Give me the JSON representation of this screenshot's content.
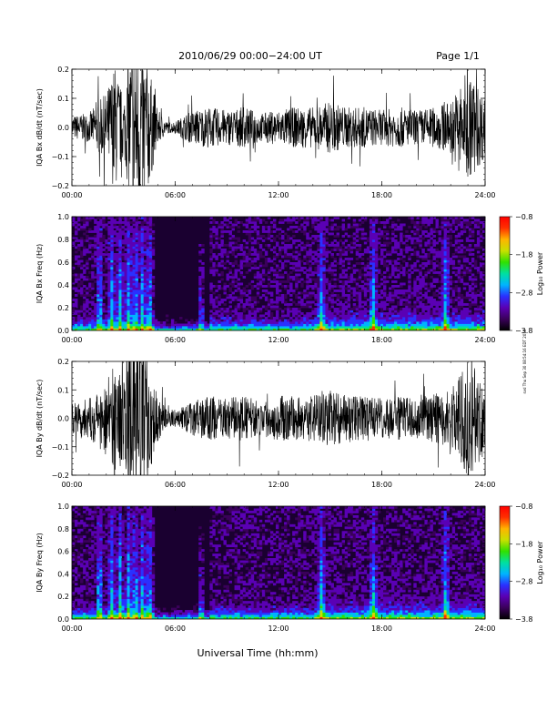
{
  "header": {
    "title": "2010/06/29  00:00−24:00 UT",
    "page": "Page 1/1"
  },
  "xlabel": "Universal Time (hh:mm)",
  "side_stamp": "svd Thu Sep 30 08:54:16 EDT 2010",
  "colors": {
    "trace": "#000000",
    "colormap": [
      "#000000",
      "#3a005a",
      "#5a00b4",
      "#2a30ff",
      "#00b4ff",
      "#00e0a0",
      "#30e000",
      "#c8e000",
      "#ffb400",
      "#ff3000",
      "#ff0000"
    ]
  },
  "chart_data": [
    {
      "type": "line",
      "ylabel": "IQA Bx dB/dt (nT/sec)",
      "xlim": [
        0,
        24
      ],
      "ylim": [
        -0.2,
        0.2
      ],
      "xticks": [
        "00:00",
        "06:00",
        "12:00",
        "18:00",
        "24:00"
      ],
      "yticks": [
        "0.2",
        "0.1",
        "0.0",
        "−0.1",
        "−0.2"
      ],
      "ytick_values": [
        0.2,
        0.1,
        0.0,
        -0.1,
        -0.2
      ],
      "activity_envelope": {
        "x": [
          0,
          1,
          2,
          2.5,
          3,
          3.5,
          4,
          4.5,
          5,
          5.5,
          6,
          7,
          8,
          9,
          10,
          11,
          12,
          13,
          14,
          15,
          16,
          17,
          18,
          19,
          20,
          21,
          22,
          23,
          24
        ],
        "amplitude": [
          0.04,
          0.05,
          0.12,
          0.22,
          0.1,
          0.3,
          0.3,
          0.2,
          0.06,
          0.02,
          0.02,
          0.06,
          0.07,
          0.06,
          0.07,
          0.05,
          0.06,
          0.07,
          0.07,
          0.09,
          0.07,
          0.07,
          0.06,
          0.07,
          0.06,
          0.07,
          0.09,
          0.2,
          0.1
        ]
      }
    },
    {
      "type": "heatmap",
      "ylabel": "IQA Bx Freq (Hz)",
      "xlim": [
        0,
        24
      ],
      "ylim": [
        0,
        1.0
      ],
      "xticks": [
        "00:00",
        "06:00",
        "12:00",
        "18:00",
        "24:00"
      ],
      "yticks": [
        "1.0",
        "0.8",
        "0.6",
        "0.4",
        "0.2",
        "0.0"
      ],
      "ytick_values": [
        1.0,
        0.8,
        0.6,
        0.4,
        0.2,
        0.0
      ],
      "colorbar": {
        "label": "Log₁₀ Power",
        "range": [
          -3.8,
          -0.8
        ],
        "ticks": [
          "−0.8",
          "−1.8",
          "−2.8",
          "−3.8"
        ],
        "tick_values": [
          -0.8,
          -1.8,
          -2.8,
          -3.8
        ]
      },
      "activity_bands": [
        1.6,
        2.3,
        2.8,
        3.3,
        3.7,
        4.1,
        4.5,
        7.5,
        14.5,
        17.5,
        21.7
      ]
    },
    {
      "type": "line",
      "ylabel": "IQA By dB/dt (nT/sec)",
      "xlim": [
        0,
        24
      ],
      "ylim": [
        -0.2,
        0.2
      ],
      "xticks": [
        "00:00",
        "06:00",
        "12:00",
        "18:00",
        "24:00"
      ],
      "yticks": [
        "0.2",
        "0.1",
        "0.0",
        "−0.1",
        "−0.2"
      ],
      "ytick_values": [
        0.2,
        0.1,
        0.0,
        -0.1,
        -0.2
      ],
      "activity_envelope": {
        "x": [
          0,
          1,
          2,
          2.5,
          3,
          3.5,
          4,
          4.5,
          5,
          5.5,
          6,
          7,
          8,
          9,
          10,
          11,
          12,
          13,
          14,
          15,
          16,
          17,
          18,
          19,
          20,
          21,
          22,
          23,
          24
        ],
        "amplitude": [
          0.06,
          0.07,
          0.13,
          0.2,
          0.15,
          0.3,
          0.3,
          0.2,
          0.08,
          0.03,
          0.03,
          0.06,
          0.08,
          0.07,
          0.08,
          0.06,
          0.08,
          0.08,
          0.08,
          0.1,
          0.08,
          0.08,
          0.07,
          0.08,
          0.07,
          0.09,
          0.1,
          0.22,
          0.12
        ]
      }
    },
    {
      "type": "heatmap",
      "ylabel": "IQA By Freq (Hz)",
      "xlim": [
        0,
        24
      ],
      "ylim": [
        0,
        1.0
      ],
      "xticks": [
        "00:00",
        "06:00",
        "12:00",
        "18:00",
        "24:00"
      ],
      "yticks": [
        "1.0",
        "0.8",
        "0.6",
        "0.4",
        "0.2",
        "0.0"
      ],
      "ytick_values": [
        1.0,
        0.8,
        0.6,
        0.4,
        0.2,
        0.0
      ],
      "colorbar": {
        "label": "Log₁₀ Power",
        "range": [
          -3.8,
          -0.8
        ],
        "ticks": [
          "−0.8",
          "−1.8",
          "−2.8",
          "−3.8"
        ],
        "tick_values": [
          -0.8,
          -1.8,
          -2.8,
          -3.8
        ]
      },
      "activity_bands": [
        1.6,
        2.3,
        2.8,
        3.3,
        3.7,
        4.1,
        4.5,
        7.5,
        14.5,
        17.5,
        21.7
      ]
    }
  ]
}
